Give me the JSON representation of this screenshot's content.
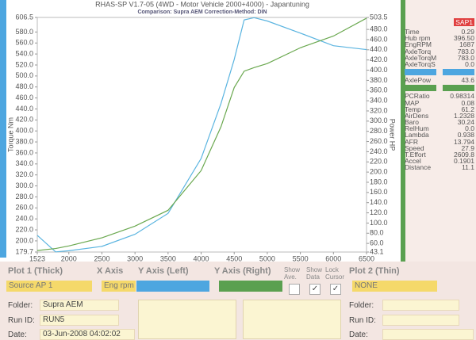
{
  "chart_data": {
    "type": "line",
    "title": "RHAS-SP V1.7-05    (4WD - Motor Vehicle 2000+4000) - Japantuning",
    "subtitle": "Comparison: Supra AEM    Correction-Method: DIN",
    "y_label": "Torque Nm",
    "y2_label": "Power HP",
    "x": [
      1523,
      1800,
      2000,
      2500,
      3000,
      3500,
      4000,
      4300,
      4500,
      4650,
      4800,
      5000,
      5500,
      6000,
      6500
    ],
    "series": [
      {
        "name": "Torque",
        "color": "#5ab4e0",
        "values": [
          210,
          180,
          182,
          190,
          212,
          250,
          350,
          450,
          530,
          602,
          606,
          600,
          578,
          555,
          548
        ]
      },
      {
        "name": "Power",
        "color": "#6aa84f",
        "axis": "y2",
        "values": [
          46,
          50,
          55,
          71,
          94,
          125,
          203,
          289,
          366,
          398,
          405,
          413,
          444,
          467,
          502
        ]
      }
    ],
    "xlim": [
      1523,
      6500
    ],
    "xticks": [
      1523,
      2000,
      2500,
      3000,
      3500,
      4000,
      4500,
      5000,
      5500,
      6000,
      6500
    ],
    "ylim": [
      179.7,
      606.5
    ],
    "yticks": [
      179.7,
      {
        "value": 200,
        "label": "200.0"
      },
      {
        "value": 220,
        "label": "220.0"
      },
      {
        "value": 240,
        "label": "240.0"
      },
      {
        "value": 260,
        "label": "260.0"
      },
      {
        "value": 280,
        "label": "280.0"
      },
      {
        "value": 300,
        "label": "300.0"
      },
      {
        "value": 320,
        "label": "320.0"
      },
      {
        "value": 340,
        "label": "340.0"
      },
      {
        "value": 360,
        "label": "360.0"
      },
      {
        "value": 380,
        "label": "380.0"
      },
      {
        "value": 400,
        "label": "400.0"
      },
      {
        "value": 420,
        "label": "420.0"
      },
      {
        "value": 440,
        "label": "440.0"
      },
      {
        "value": 460,
        "label": "460.0"
      },
      {
        "value": 480,
        "label": "480.0"
      },
      {
        "value": 500,
        "label": "500.0"
      },
      {
        "value": 520,
        "label": "520.0"
      },
      {
        "value": 540,
        "label": "540.0"
      },
      {
        "value": 560,
        "label": "560.0"
      },
      {
        "value": 580,
        "label": "580.0"
      },
      606.5
    ],
    "y2lim": [
      43.1,
      503.5
    ],
    "y2ticks": [
      43.1,
      {
        "value": 60,
        "label": "60.0"
      },
      {
        "value": 80,
        "label": "80.0"
      },
      {
        "value": 100,
        "label": "100.0"
      },
      {
        "value": 120,
        "label": "120.0"
      },
      {
        "value": 140,
        "label": "140.0"
      },
      {
        "value": 160,
        "label": "160.0"
      },
      {
        "value": 180,
        "label": "180.0"
      },
      {
        "value": 200,
        "label": "200.0"
      },
      {
        "value": 220,
        "label": "220.0"
      },
      {
        "value": 240,
        "label": "240.0"
      },
      {
        "value": 260,
        "label": "260.0"
      },
      {
        "value": 280,
        "label": "280.0"
      },
      {
        "value": 300,
        "label": "300.0"
      },
      {
        "value": 320,
        "label": "320.0"
      },
      {
        "value": 340,
        "label": "340.0"
      },
      {
        "value": 360,
        "label": "360.0"
      },
      {
        "value": 380,
        "label": "380.0"
      },
      {
        "value": 400,
        "label": "400.0"
      },
      {
        "value": 420,
        "label": "420.0"
      },
      {
        "value": 440,
        "label": "440.0"
      },
      {
        "value": 460,
        "label": "460.0"
      },
      {
        "value": 480,
        "label": "480.0"
      },
      503.5
    ]
  },
  "panel": {
    "header": "SAP1",
    "rows": [
      {
        "label": "Time",
        "value": "0.29"
      },
      {
        "label": "Hub rpm",
        "value": "396.50"
      },
      {
        "label": "EngRPM",
        "value": "1687"
      },
      {
        "label": "AxleTorq",
        "value": "783.0"
      },
      {
        "label": "AxleTorqM",
        "value": "783.0"
      },
      {
        "label": "AxleTorqS",
        "value": "0.0"
      },
      {
        "label": "AxlePow",
        "value": "43.6"
      },
      {
        "label": "PCRatio",
        "value": "0.98314"
      },
      {
        "label": "MAP",
        "value": "0.08"
      },
      {
        "label": "Temp",
        "value": "61.2"
      },
      {
        "label": "AirDens",
        "value": "1.2328"
      },
      {
        "label": "Baro",
        "value": "30.24"
      },
      {
        "label": "RelHum",
        "value": "0.0"
      },
      {
        "label": "Lambda",
        "value": "0.938"
      },
      {
        "label": "AFR",
        "value": "13.794"
      },
      {
        "label": "Speed",
        "value": "27.9"
      },
      {
        "label": "T.Effort",
        "value": "2609.8"
      },
      {
        "label": "Accel",
        "value": "0.1901"
      },
      {
        "label": "Distance",
        "value": "11.1"
      }
    ]
  },
  "controls": {
    "plot1": "Plot 1 (Thick)",
    "x_axis": "X Axis",
    "y_left": "Y Axis (Left)",
    "y_right": "Y Axis (Right)",
    "show_ave": "Show Ave.",
    "show_data": "Show Data",
    "lock_cursor": "Lock Cursor",
    "plot2": "Plot 2 (Thin)",
    "plot1_source": "Source AP 1",
    "x_axis_value": "Eng rpm",
    "plot2_value": "NONE",
    "left": {
      "folder_label": "Folder:",
      "folder": "Supra AEM",
      "run_label": "Run ID:",
      "run": "RUN5",
      "date_label": "Date:",
      "date": "03-Jun-2008  04:02:02"
    },
    "right": {
      "folder_label": "Folder:",
      "run_label": "Run ID:",
      "date_label": "Date:"
    }
  }
}
